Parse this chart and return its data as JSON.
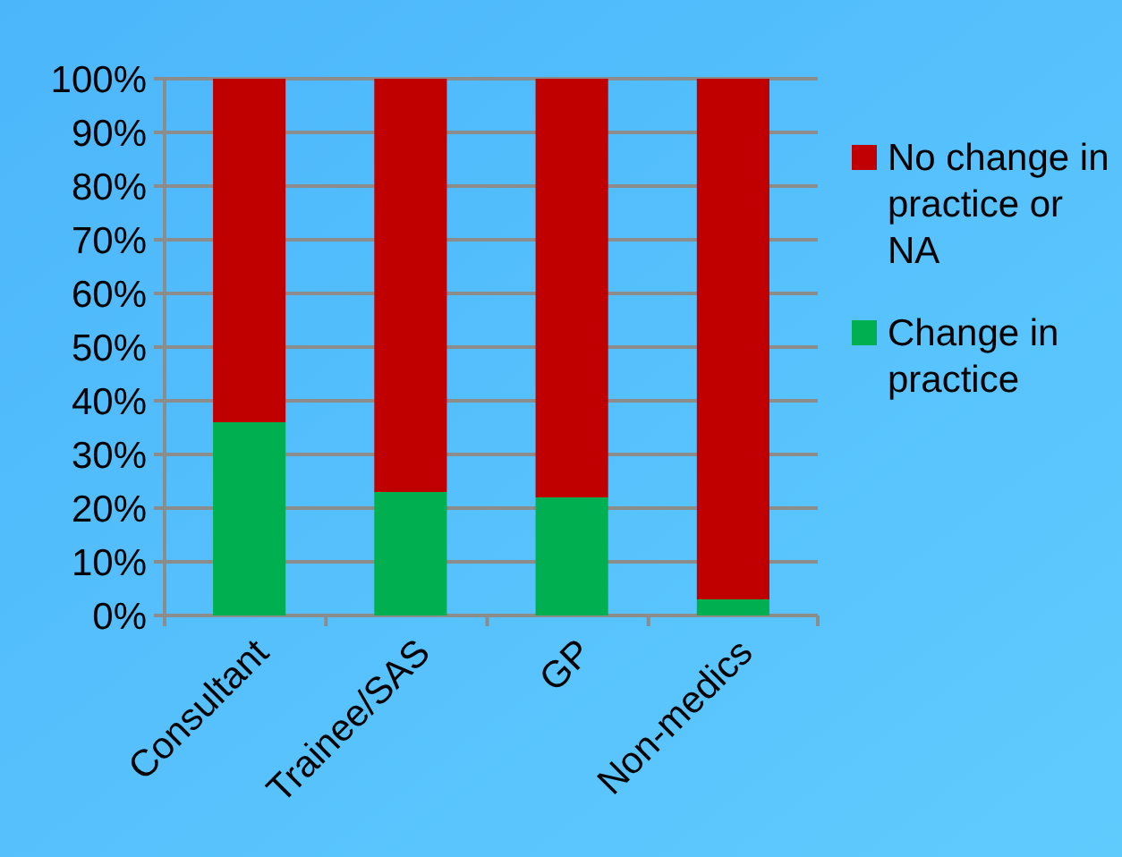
{
  "chart_data": {
    "type": "bar",
    "stacked": true,
    "categories": [
      "Consultant",
      "Trainee/SAS",
      "GP",
      "Non-medics"
    ],
    "series": [
      {
        "name": "Change in practice",
        "color": "#00b050",
        "values": [
          36,
          23,
          22,
          3
        ]
      },
      {
        "name": "No change in practice or NA",
        "color": "#c00000",
        "values": [
          64,
          77,
          78,
          97
        ]
      }
    ],
    "ylim": [
      0,
      100
    ],
    "yticks": [
      {
        "value": 0,
        "label": "0%"
      },
      {
        "value": 10,
        "label": "10%"
      },
      {
        "value": 20,
        "label": "20%"
      },
      {
        "value": 30,
        "label": "30%"
      },
      {
        "value": 40,
        "label": "40%"
      },
      {
        "value": 50,
        "label": "50%"
      },
      {
        "value": 60,
        "label": "60%"
      },
      {
        "value": 70,
        "label": "70%"
      },
      {
        "value": 80,
        "label": "80%"
      },
      {
        "value": 90,
        "label": "90%"
      },
      {
        "value": 100,
        "label": "100%"
      }
    ],
    "grid": "y",
    "legend": "right"
  }
}
